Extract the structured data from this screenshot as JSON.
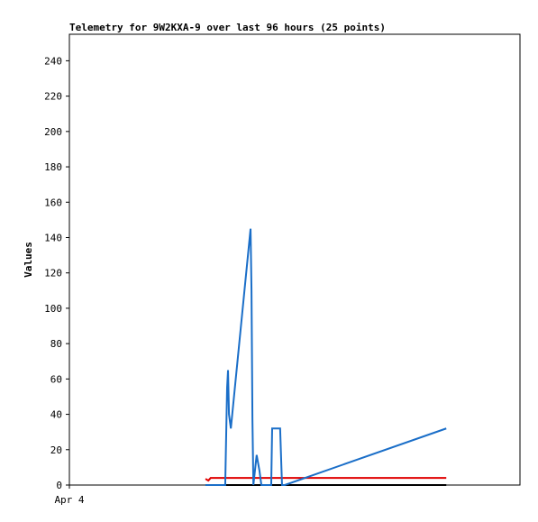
{
  "chart_data": {
    "type": "line",
    "title": "Telemetry for 9W2KXA-9 over last 96 hours (25 points)",
    "y_label": "Values",
    "x": [
      29.0,
      29.6,
      30.1,
      31.3,
      33.2,
      33.6,
      33.8,
      34.0,
      34.4,
      38.6,
      38.8,
      39.0,
      39.2,
      39.9,
      40.5,
      40.9,
      42.0,
      43.0,
      43.2,
      44.0,
      44.9,
      45.3,
      45.9,
      62.0,
      80.3
    ],
    "series": [
      {
        "color": "#000000",
        "values": [
          0,
          0,
          0,
          0,
          0,
          0,
          0,
          0,
          0,
          0,
          0,
          0,
          0,
          0,
          0,
          0,
          0,
          0,
          0,
          0,
          0,
          0,
          0,
          0,
          0
        ]
      },
      {
        "color": "#e00000",
        "values": [
          3.5,
          2.5,
          4,
          4,
          4,
          4,
          4,
          4,
          4,
          4,
          4,
          4,
          4,
          4,
          4,
          4,
          4,
          4,
          4,
          4,
          4,
          4,
          4,
          4,
          4
        ]
      },
      {
        "color": "#1a6ec8",
        "values": [
          0,
          0,
          0,
          0,
          0,
          55,
          65,
          40,
          32,
          145,
          110,
          37,
          0,
          17,
          8,
          0,
          0,
          0,
          32,
          32,
          32,
          0,
          0,
          15,
          32
        ]
      }
    ],
    "xlim": [
      0,
      96
    ],
    "xticks": [
      {
        "value": 0,
        "label": "Apr 4"
      }
    ],
    "ylim": [
      0,
      255
    ],
    "yticks": [
      0,
      20,
      40,
      60,
      80,
      100,
      120,
      140,
      160,
      180,
      200,
      220,
      240
    ]
  }
}
